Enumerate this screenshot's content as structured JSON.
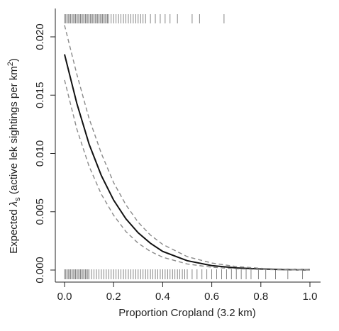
{
  "chart_data": {
    "type": "line",
    "xlabel": "Proportion Cropland (3.2 km)",
    "ylabel_prefix": "Expected ",
    "ylabel_symbol": "λ",
    "ylabel_sub": "s",
    "ylabel_suffix": " (active lek sightings per km",
    "ylabel_sup": "2",
    "ylabel_close": ")",
    "xlim": [
      0.0,
      1.0
    ],
    "ylim": [
      0.0,
      0.0215
    ],
    "x_ticks": [
      0.0,
      0.2,
      0.4,
      0.6,
      0.8,
      1.0
    ],
    "x_tick_labels": [
      "0.0",
      "0.2",
      "0.4",
      "0.6",
      "0.8",
      "1.0"
    ],
    "y_ticks": [
      0.0,
      0.005,
      0.01,
      0.015,
      0.02
    ],
    "y_tick_labels": [
      "0.000",
      "0.005",
      "0.010",
      "0.015",
      "0.020"
    ],
    "grid": false,
    "series": [
      {
        "role": "estimate",
        "style": "solid",
        "color": "#111111",
        "x": [
          0.0,
          0.05,
          0.1,
          0.15,
          0.2,
          0.25,
          0.3,
          0.35,
          0.4,
          0.5,
          0.6,
          0.7,
          0.8,
          0.9,
          1.0
        ],
        "y": [
          0.0185,
          0.0143,
          0.0108,
          0.0081,
          0.006,
          0.0044,
          0.0032,
          0.0023,
          0.0016,
          0.0008,
          0.00038,
          0.00018,
          9e-05,
          4e-05,
          2e-05
        ]
      },
      {
        "role": "upper",
        "style": "dashed",
        "color": "#8a8a8a",
        "x": [
          0.0,
          0.05,
          0.1,
          0.15,
          0.2,
          0.25,
          0.3,
          0.35,
          0.4,
          0.5,
          0.6,
          0.7,
          0.8,
          0.9,
          1.0
        ],
        "y": [
          0.021,
          0.0168,
          0.013,
          0.01,
          0.0075,
          0.0056,
          0.0041,
          0.003,
          0.0022,
          0.00115,
          0.0006,
          0.0003,
          0.00015,
          7e-05,
          3e-05
        ]
      },
      {
        "role": "lower",
        "style": "dashed",
        "color": "#8a8a8a",
        "x": [
          0.0,
          0.05,
          0.1,
          0.15,
          0.2,
          0.25,
          0.3,
          0.35,
          0.4,
          0.5,
          0.6,
          0.7,
          0.8,
          0.9,
          1.0
        ],
        "y": [
          0.0163,
          0.0121,
          0.0089,
          0.0065,
          0.0047,
          0.0033,
          0.0023,
          0.0016,
          0.0011,
          0.00052,
          0.00024,
          0.00011,
          5e-05,
          2e-05,
          1e-05
        ]
      }
    ],
    "rug_top": [
      0.0,
      0.005,
      0.01,
      0.015,
      0.02,
      0.025,
      0.03,
      0.035,
      0.04,
      0.045,
      0.05,
      0.055,
      0.06,
      0.065,
      0.07,
      0.075,
      0.08,
      0.085,
      0.09,
      0.095,
      0.1,
      0.105,
      0.11,
      0.115,
      0.12,
      0.125,
      0.13,
      0.135,
      0.14,
      0.145,
      0.15,
      0.155,
      0.16,
      0.165,
      0.17,
      0.175,
      0.18,
      0.19,
      0.2,
      0.21,
      0.22,
      0.23,
      0.24,
      0.25,
      0.26,
      0.27,
      0.28,
      0.29,
      0.3,
      0.31,
      0.32,
      0.33,
      0.35,
      0.37,
      0.39,
      0.41,
      0.43,
      0.46,
      0.52,
      0.55,
      0.65
    ],
    "rug_bottom": [
      0.0,
      0.005,
      0.01,
      0.015,
      0.02,
      0.025,
      0.03,
      0.035,
      0.04,
      0.045,
      0.05,
      0.055,
      0.06,
      0.065,
      0.07,
      0.075,
      0.08,
      0.085,
      0.09,
      0.095,
      0.1,
      0.11,
      0.12,
      0.13,
      0.14,
      0.15,
      0.16,
      0.17,
      0.18,
      0.19,
      0.2,
      0.21,
      0.22,
      0.23,
      0.24,
      0.25,
      0.26,
      0.27,
      0.28,
      0.29,
      0.3,
      0.31,
      0.32,
      0.33,
      0.34,
      0.35,
      0.36,
      0.37,
      0.38,
      0.39,
      0.4,
      0.41,
      0.42,
      0.43,
      0.44,
      0.45,
      0.46,
      0.47,
      0.48,
      0.49,
      0.5,
      0.52,
      0.54,
      0.56,
      0.58,
      0.6,
      0.62,
      0.64,
      0.66,
      0.68,
      0.7,
      0.72,
      0.74,
      0.76,
      0.79,
      0.82,
      0.86,
      0.91,
      0.97
    ]
  }
}
